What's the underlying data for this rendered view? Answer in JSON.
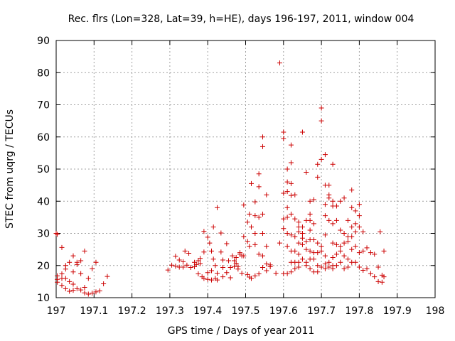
{
  "chart_data": {
    "type": "scatter",
    "title": "Rec. flrs (Lon=328, Lat=39, h=HE), days 196-197, 2011, window 004",
    "xlabel": "GPS time / Days of year 2011",
    "ylabel": "STEC from uqrg / TECUs",
    "xlim": [
      197,
      198
    ],
    "ylim": [
      10,
      90
    ],
    "xticks": [
      "197",
      "197.1",
      "197.2",
      "197.3",
      "197.4",
      "197.5",
      "197.6",
      "197.7",
      "197.8",
      "197.9",
      "198"
    ],
    "yticks": [
      "10",
      "20",
      "30",
      "40",
      "50",
      "60",
      "70",
      "80",
      "90"
    ],
    "grid": true,
    "marker": "+",
    "color": "#cc0000",
    "points": [
      [
        197.0,
        30.0
      ],
      [
        197.003,
        29.7
      ],
      [
        197.003,
        16.8
      ],
      [
        197.003,
        15.7
      ],
      [
        197.003,
        14.8
      ],
      [
        197.015,
        25.6
      ],
      [
        197.015,
        17.4
      ],
      [
        197.015,
        16.0
      ],
      [
        197.015,
        13.8
      ],
      [
        197.025,
        20.0
      ],
      [
        197.025,
        18.9
      ],
      [
        197.025,
        16.0
      ],
      [
        197.025,
        12.8
      ],
      [
        197.035,
        21.0
      ],
      [
        197.035,
        15.0
      ],
      [
        197.035,
        12.0
      ],
      [
        197.045,
        23.0
      ],
      [
        197.045,
        18.0
      ],
      [
        197.045,
        14.2
      ],
      [
        197.045,
        12.3
      ],
      [
        197.055,
        21.0
      ],
      [
        197.055,
        20.3
      ],
      [
        197.055,
        12.8
      ],
      [
        197.065,
        21.5
      ],
      [
        197.065,
        17.5
      ],
      [
        197.065,
        12.4
      ],
      [
        197.075,
        24.5
      ],
      [
        197.075,
        13.2
      ],
      [
        197.075,
        11.5
      ],
      [
        197.085,
        11.1
      ],
      [
        197.085,
        16.0
      ],
      [
        197.095,
        19.0
      ],
      [
        197.095,
        11.4
      ],
      [
        197.105,
        21.0
      ],
      [
        197.105,
        11.8
      ],
      [
        197.115,
        12.1
      ],
      [
        197.125,
        14.3
      ],
      [
        197.135,
        16.6
      ],
      [
        197.295,
        18.6
      ],
      [
        197.305,
        20.1
      ],
      [
        197.315,
        19.8
      ],
      [
        197.315,
        22.9
      ],
      [
        197.325,
        19.5
      ],
      [
        197.325,
        21.7
      ],
      [
        197.335,
        21.2
      ],
      [
        197.335,
        19.5
      ],
      [
        197.34,
        24.5
      ],
      [
        197.345,
        20.1
      ],
      [
        197.35,
        23.8
      ],
      [
        197.355,
        19.4
      ],
      [
        197.365,
        21.0
      ],
      [
        197.365,
        19.6
      ],
      [
        197.37,
        20.3
      ],
      [
        197.375,
        21.5
      ],
      [
        197.375,
        17.4
      ],
      [
        197.38,
        22.2
      ],
      [
        197.38,
        20.6
      ],
      [
        197.385,
        16.5
      ],
      [
        197.39,
        24.2
      ],
      [
        197.39,
        30.6
      ],
      [
        197.39,
        16.0
      ],
      [
        197.4,
        28.8
      ],
      [
        197.4,
        17.8
      ],
      [
        197.4,
        15.7
      ],
      [
        197.405,
        27.0
      ],
      [
        197.41,
        24.5
      ],
      [
        197.41,
        18.4
      ],
      [
        197.41,
        15.5
      ],
      [
        197.415,
        32.0
      ],
      [
        197.415,
        22.0
      ],
      [
        197.42,
        20.0
      ],
      [
        197.42,
        16.0
      ],
      [
        197.425,
        38.0
      ],
      [
        197.425,
        17.6
      ],
      [
        197.425,
        15.5
      ],
      [
        197.435,
        24.2
      ],
      [
        197.435,
        30.1
      ],
      [
        197.44,
        21.7
      ],
      [
        197.44,
        19.4
      ],
      [
        197.44,
        16.5
      ],
      [
        197.45,
        26.8
      ],
      [
        197.45,
        17.8
      ],
      [
        197.455,
        21.5
      ],
      [
        197.46,
        19.4
      ],
      [
        197.46,
        16.2
      ],
      [
        197.465,
        23.0
      ],
      [
        197.47,
        21.5
      ],
      [
        197.47,
        19.7
      ],
      [
        197.475,
        20.7
      ],
      [
        197.475,
        22.5
      ],
      [
        197.48,
        19.7
      ],
      [
        197.48,
        18.9
      ],
      [
        197.485,
        24.0
      ],
      [
        197.485,
        23.5
      ],
      [
        197.49,
        23.0
      ],
      [
        197.49,
        17.6
      ],
      [
        197.495,
        38.8
      ],
      [
        197.495,
        29.0
      ],
      [
        197.495,
        23.0
      ],
      [
        197.505,
        33.5
      ],
      [
        197.505,
        27.5
      ],
      [
        197.505,
        17.2
      ],
      [
        197.51,
        36.0
      ],
      [
        197.51,
        26.0
      ],
      [
        197.51,
        16.4
      ],
      [
        197.515,
        45.5
      ],
      [
        197.515,
        32.0
      ],
      [
        197.515,
        16.0
      ],
      [
        197.525,
        39.8
      ],
      [
        197.525,
        35.5
      ],
      [
        197.525,
        30.0
      ],
      [
        197.525,
        26.5
      ],
      [
        197.525,
        16.8
      ],
      [
        197.535,
        48.5
      ],
      [
        197.535,
        44.5
      ],
      [
        197.535,
        35.0
      ],
      [
        197.535,
        23.5
      ],
      [
        197.535,
        17.4
      ],
      [
        197.545,
        60.0
      ],
      [
        197.545,
        57.0
      ],
      [
        197.545,
        36.0
      ],
      [
        197.545,
        30.0
      ],
      [
        197.545,
        23.0
      ],
      [
        197.545,
        19.4
      ],
      [
        197.555,
        42.0
      ],
      [
        197.555,
        26.0
      ],
      [
        197.555,
        20.5
      ],
      [
        197.555,
        18.4
      ],
      [
        197.565,
        20.2
      ],
      [
        197.565,
        19.6
      ],
      [
        197.58,
        17.6
      ],
      [
        197.59,
        83.0
      ],
      [
        197.59,
        27.0
      ],
      [
        197.6,
        61.5
      ],
      [
        197.6,
        59.5
      ],
      [
        197.6,
        42.5
      ],
      [
        197.6,
        34.5
      ],
      [
        197.6,
        31.5
      ],
      [
        197.6,
        17.5
      ],
      [
        197.61,
        50.0
      ],
      [
        197.61,
        46.0
      ],
      [
        197.61,
        43.0
      ],
      [
        197.61,
        38.0
      ],
      [
        197.61,
        35.0
      ],
      [
        197.61,
        30.0
      ],
      [
        197.61,
        26.0
      ],
      [
        197.61,
        17.5
      ],
      [
        197.62,
        57.5
      ],
      [
        197.62,
        52.0
      ],
      [
        197.62,
        45.5
      ],
      [
        197.62,
        41.8
      ],
      [
        197.62,
        36.0
      ],
      [
        197.62,
        29.5
      ],
      [
        197.62,
        24.5
      ],
      [
        197.62,
        21.0
      ],
      [
        197.62,
        18.0
      ],
      [
        197.63,
        42.0
      ],
      [
        197.63,
        34.5
      ],
      [
        197.63,
        29.0
      ],
      [
        197.63,
        24.5
      ],
      [
        197.63,
        21.0
      ],
      [
        197.63,
        19.0
      ],
      [
        197.64,
        33.5
      ],
      [
        197.64,
        32.0
      ],
      [
        197.64,
        30.5
      ],
      [
        197.64,
        27.0
      ],
      [
        197.64,
        23.5
      ],
      [
        197.64,
        21.0
      ],
      [
        197.64,
        19.5
      ],
      [
        197.65,
        61.5
      ],
      [
        197.65,
        32.0
      ],
      [
        197.65,
        30.0
      ],
      [
        197.65,
        28.5
      ],
      [
        197.65,
        26.5
      ],
      [
        197.65,
        22.0
      ],
      [
        197.66,
        49.0
      ],
      [
        197.66,
        34.0
      ],
      [
        197.66,
        27.5
      ],
      [
        197.66,
        25.0
      ],
      [
        197.66,
        21.0
      ],
      [
        197.66,
        20.0
      ],
      [
        197.67,
        40.0
      ],
      [
        197.67,
        36.0
      ],
      [
        197.67,
        34.0
      ],
      [
        197.67,
        31.0
      ],
      [
        197.67,
        28.0
      ],
      [
        197.67,
        24.5
      ],
      [
        197.67,
        22.0
      ],
      [
        197.67,
        19.0
      ],
      [
        197.68,
        40.5
      ],
      [
        197.68,
        33.0
      ],
      [
        197.68,
        28.0
      ],
      [
        197.68,
        24.0
      ],
      [
        197.68,
        22.0
      ],
      [
        197.68,
        18.0
      ],
      [
        197.69,
        51.5
      ],
      [
        197.69,
        47.5
      ],
      [
        197.69,
        27.0
      ],
      [
        197.69,
        24.0
      ],
      [
        197.69,
        20.0
      ],
      [
        197.69,
        18.0
      ],
      [
        197.7,
        69.0
      ],
      [
        197.7,
        65.0
      ],
      [
        197.7,
        53.0
      ],
      [
        197.7,
        26.0
      ],
      [
        197.7,
        24.5
      ],
      [
        197.7,
        19.5
      ],
      [
        197.71,
        54.5
      ],
      [
        197.71,
        45.0
      ],
      [
        197.71,
        39.0
      ],
      [
        197.71,
        35.5
      ],
      [
        197.71,
        29.5
      ],
      [
        197.71,
        23.0
      ],
      [
        197.71,
        20.5
      ],
      [
        197.71,
        19.0
      ],
      [
        197.72,
        45.0
      ],
      [
        197.72,
        42.0
      ],
      [
        197.72,
        41.0
      ],
      [
        197.72,
        34.0
      ],
      [
        197.72,
        21.0
      ],
      [
        197.72,
        19.5
      ],
      [
        197.73,
        51.5
      ],
      [
        197.73,
        40.0
      ],
      [
        197.73,
        38.5
      ],
      [
        197.73,
        33.0
      ],
      [
        197.73,
        27.0
      ],
      [
        197.73,
        22.5
      ],
      [
        197.73,
        20.0
      ],
      [
        197.73,
        19.0
      ],
      [
        197.74,
        38.5
      ],
      [
        197.74,
        34.0
      ],
      [
        197.74,
        26.5
      ],
      [
        197.74,
        23.5
      ],
      [
        197.74,
        20.0
      ],
      [
        197.75,
        40.0
      ],
      [
        197.75,
        31.0
      ],
      [
        197.75,
        26.0
      ],
      [
        197.75,
        24.5
      ],
      [
        197.75,
        21.0
      ],
      [
        197.76,
        41.0
      ],
      [
        197.76,
        30.0
      ],
      [
        197.76,
        27.0
      ],
      [
        197.76,
        23.0
      ],
      [
        197.76,
        19.0
      ],
      [
        197.77,
        34.0
      ],
      [
        197.77,
        29.0
      ],
      [
        197.77,
        27.5
      ],
      [
        197.77,
        22.0
      ],
      [
        197.77,
        19.5
      ],
      [
        197.78,
        43.5
      ],
      [
        197.78,
        38.0
      ],
      [
        197.78,
        32.0
      ],
      [
        197.78,
        29.0
      ],
      [
        197.78,
        25.0
      ],
      [
        197.78,
        21.0
      ],
      [
        197.79,
        37.0
      ],
      [
        197.79,
        33.0
      ],
      [
        197.79,
        30.5
      ],
      [
        197.79,
        26.0
      ],
      [
        197.79,
        21.0
      ],
      [
        197.8,
        39.0
      ],
      [
        197.8,
        35.5
      ],
      [
        197.8,
        32.0
      ],
      [
        197.8,
        24.0
      ],
      [
        197.8,
        19.5
      ],
      [
        197.81,
        30.5
      ],
      [
        197.81,
        24.5
      ],
      [
        197.81,
        18.5
      ],
      [
        197.82,
        25.5
      ],
      [
        197.82,
        19.0
      ],
      [
        197.83,
        24.0
      ],
      [
        197.83,
        17.5
      ],
      [
        197.84,
        23.5
      ],
      [
        197.84,
        16.5
      ],
      [
        197.85,
        19.5
      ],
      [
        197.85,
        15.0
      ],
      [
        197.855,
        30.5
      ],
      [
        197.86,
        17.0
      ],
      [
        197.86,
        14.8
      ],
      [
        197.865,
        24.5
      ],
      [
        197.865,
        16.5
      ]
    ]
  }
}
